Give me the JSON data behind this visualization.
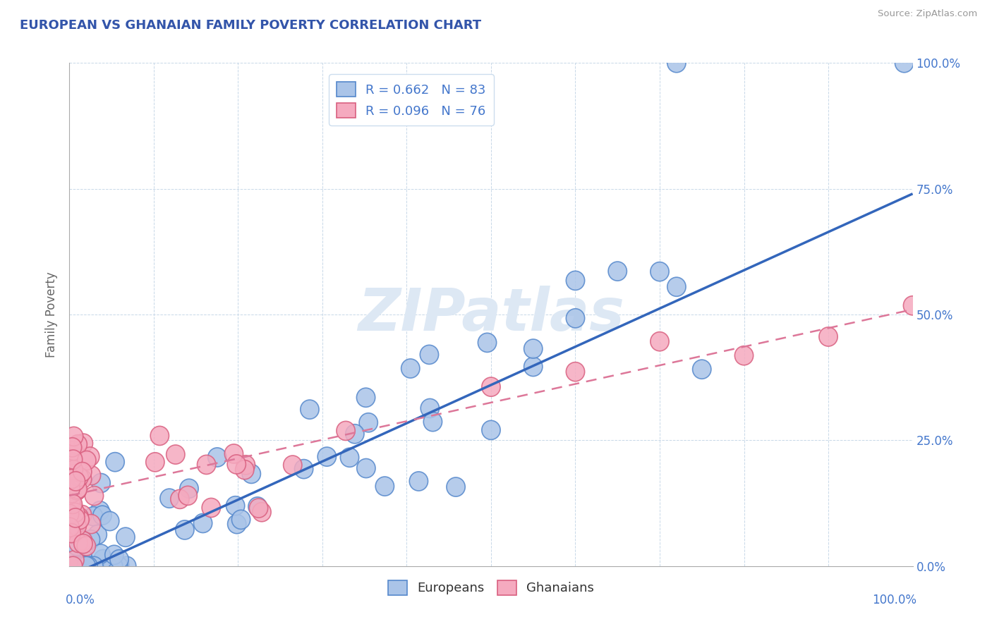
{
  "title": "EUROPEAN VS GHANAIAN FAMILY POVERTY CORRELATION CHART",
  "source": "Source: ZipAtlas.com",
  "ylabel": "Family Poverty",
  "legend_europeans": "Europeans",
  "legend_ghanaians": "Ghanaians",
  "R_europeans": 0.662,
  "N_europeans": 83,
  "R_ghanaians": 0.096,
  "N_ghanaians": 76,
  "european_color": "#aac4e8",
  "ghanaian_color": "#f5aabf",
  "european_edge_color": "#5588cc",
  "ghanaian_edge_color": "#d96080",
  "european_line_color": "#3366bb",
  "ghanaian_line_color": "#dd7799",
  "watermark_color": "#dde8f4",
  "title_color": "#3355aa",
  "axis_label_color": "#4477cc",
  "right_ytick_labels": [
    "0.0%",
    "25.0%",
    "50.0%",
    "75.0%",
    "100.0%"
  ],
  "right_ytick_values": [
    0.0,
    0.25,
    0.5,
    0.75,
    1.0
  ],
  "eu_reg_slope": 0.76,
  "eu_reg_intercept": -0.02,
  "gh_reg_slope": 0.37,
  "gh_reg_intercept": 0.14
}
